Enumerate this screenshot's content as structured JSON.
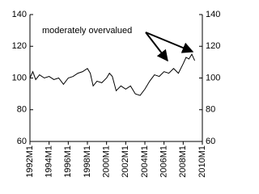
{
  "chart_data": {
    "type": "line",
    "annotation": "moderately overvalued",
    "x": [
      1992,
      1992.3,
      1992.6,
      1993,
      1993.5,
      1994,
      1994.5,
      1995,
      1995.5,
      1996,
      1996.5,
      1997,
      1997.5,
      1998,
      1998.3,
      1998.6,
      1999,
      1999.5,
      2000,
      2000.3,
      2000.6,
      2001,
      2001.5,
      2002,
      2002.5,
      2003,
      2003.5,
      2004,
      2004.5,
      2005,
      2005.5,
      2006,
      2006.5,
      2007,
      2007.5,
      2008,
      2008.3,
      2008.6,
      2008.9,
      2009.2
    ],
    "values": [
      100,
      104,
      99,
      102,
      100,
      101,
      99,
      100,
      96,
      100,
      101,
      103,
      104,
      106,
      103,
      95,
      98,
      97,
      100,
      103,
      101,
      92,
      95,
      93,
      95,
      90,
      89,
      93,
      98,
      102,
      101,
      104,
      103,
      106,
      103,
      109,
      113,
      112,
      115,
      111
    ],
    "color": "#000000",
    "xlim": [
      1992,
      2010
    ],
    "xticks": [
      {
        "value": 1992,
        "label": "1992M1"
      },
      {
        "value": 1994,
        "label": "1994M1"
      },
      {
        "value": 1996,
        "label": "1996M1"
      },
      {
        "value": 1998,
        "label": "1998M1"
      },
      {
        "value": 2000,
        "label": "2000M1"
      },
      {
        "value": 2002,
        "label": "2002M1"
      },
      {
        "value": 2004,
        "label": "2004M1"
      },
      {
        "value": 2006,
        "label": "2006M1"
      },
      {
        "value": 2008,
        "label": "2008M1"
      },
      {
        "value": 2010,
        "label": "2010M1"
      }
    ],
    "ylim": [
      60,
      140
    ],
    "yticks": [
      60,
      80,
      100,
      120,
      140
    ],
    "y2lim": [
      60,
      140
    ],
    "y2ticks": [
      60,
      80,
      100,
      120,
      140
    ]
  }
}
